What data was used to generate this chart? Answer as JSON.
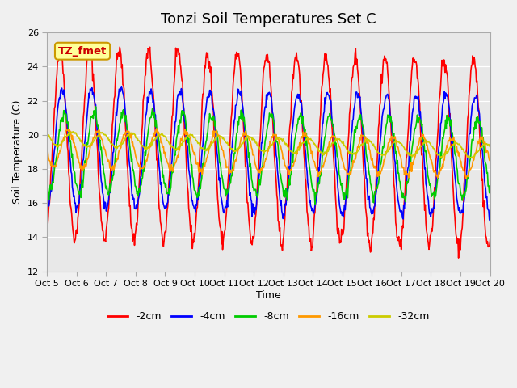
{
  "title": "Tonzi Soil Temperatures Set C",
  "xlabel": "Time",
  "ylabel": "Soil Temperature (C)",
  "ylim": [
    12,
    26
  ],
  "yticks": [
    12,
    14,
    16,
    18,
    20,
    22,
    24,
    26
  ],
  "xtick_labels": [
    "Oct 5",
    "Oct 6",
    "Oct 7",
    "Oct 8",
    "Oct 9",
    "Oct 10",
    "Oct 11",
    "Oct 12",
    "Oct 13",
    "Oct 14",
    "Oct 15",
    "Oct 16",
    "Oct 17",
    "Oct 18",
    "Oct 19",
    "Oct 20"
  ],
  "series_colors": [
    "#ff0000",
    "#0000ff",
    "#00cc00",
    "#ff9900",
    "#cccc00"
  ],
  "series_labels": [
    "-2cm",
    "-4cm",
    "-8cm",
    "-16cm",
    "-32cm"
  ],
  "annotation_text": "TZ_fmet",
  "annotation_bg": "#ffff99",
  "annotation_border": "#cc9900",
  "plot_bg": "#e8e8e8",
  "fig_bg": "#f0f0f0",
  "n_days": 16,
  "points_per_day": 48,
  "title_fontsize": 13
}
